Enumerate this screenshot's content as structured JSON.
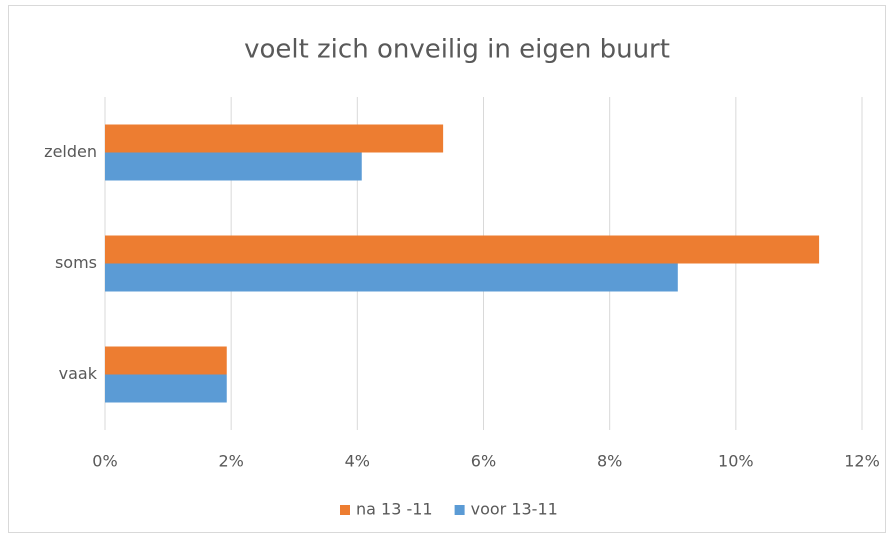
{
  "chart_data": {
    "type": "bar",
    "orientation": "horizontal",
    "title": "voelt zich onveilig in eigen buurt",
    "categories": [
      "zelden",
      "soms",
      "vaak"
    ],
    "series": [
      {
        "name": "na 13 -11",
        "color": "#ed7d31",
        "values": [
          5.36,
          11.32,
          1.93
        ]
      },
      {
        "name": "voor 13-11",
        "color": "#5b9bd5",
        "values": [
          4.07,
          9.08,
          1.93
        ]
      }
    ],
    "xlim": [
      0,
      12
    ],
    "xticks": [
      {
        "value": 0,
        "label": "0%"
      },
      {
        "value": 2,
        "label": "2%"
      },
      {
        "value": 4,
        "label": "4%"
      },
      {
        "value": 6,
        "label": "6%"
      },
      {
        "value": 8,
        "label": "8%"
      },
      {
        "value": 10,
        "label": "10%"
      },
      {
        "value": 12,
        "label": "12%"
      }
    ],
    "grid": true,
    "legend": "bottom"
  }
}
